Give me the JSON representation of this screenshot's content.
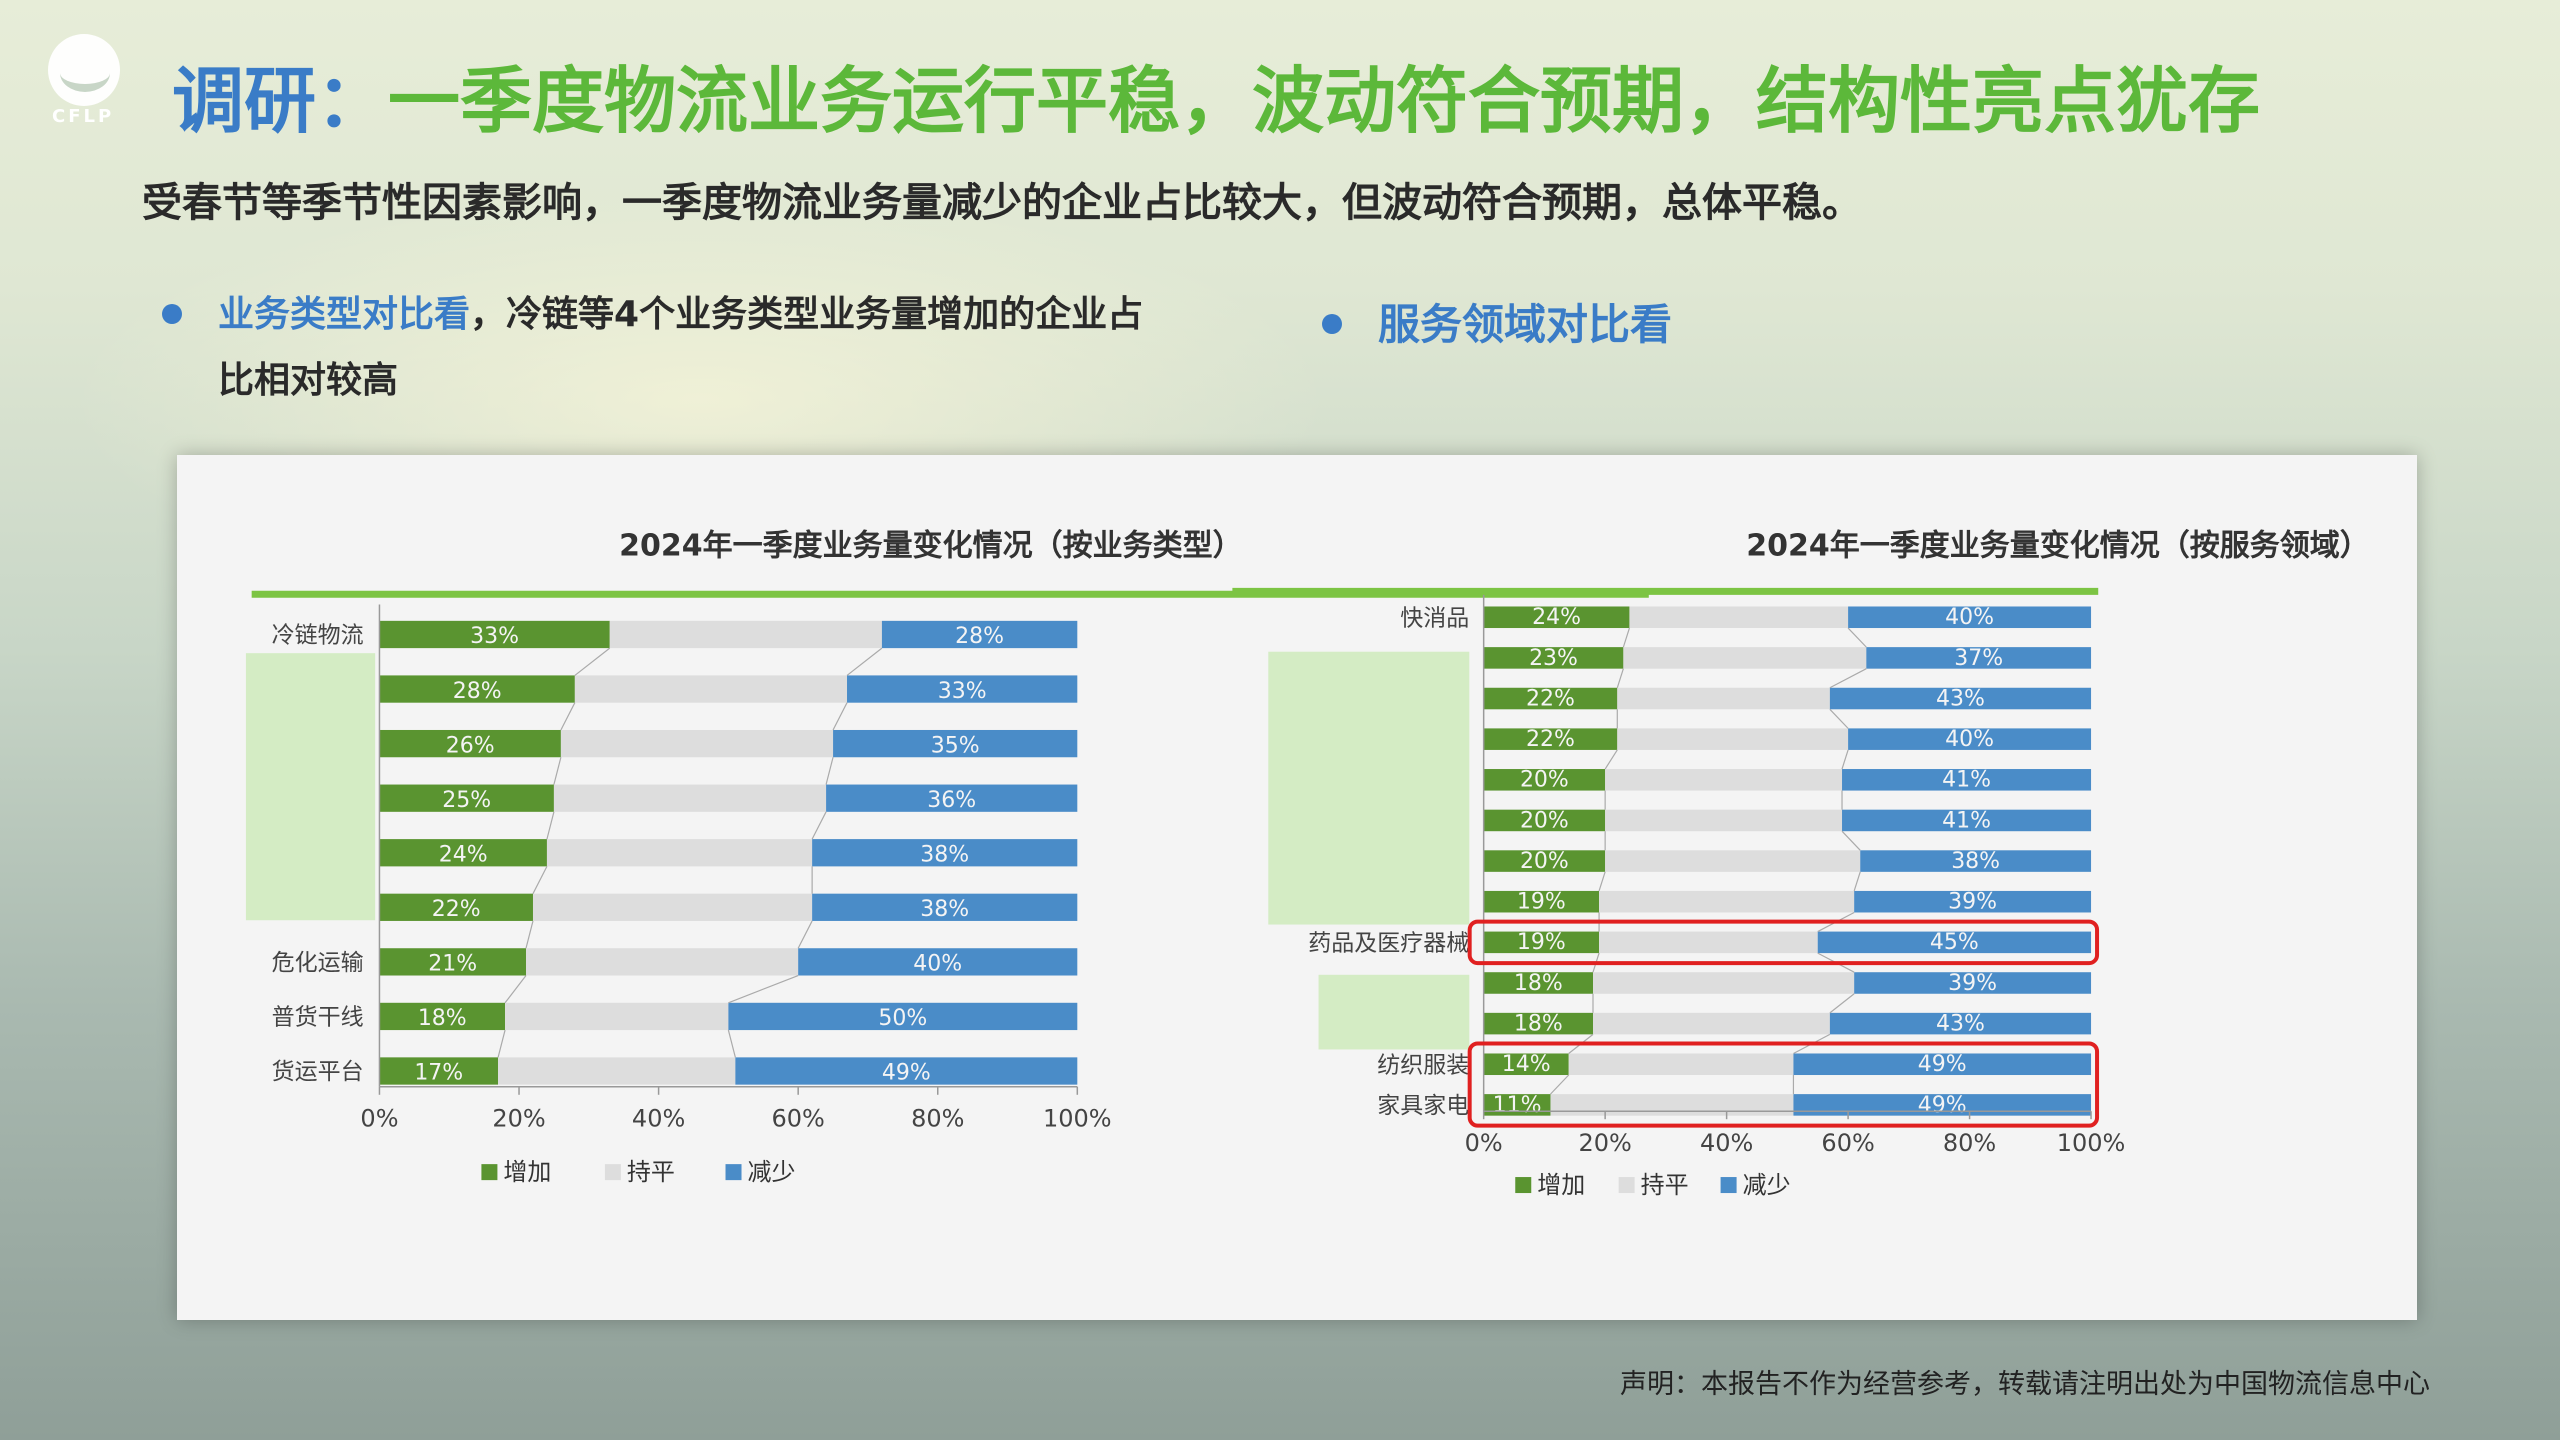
{
  "logo": {
    "text": "CFLP",
    "icon": "cflp-logo-icon"
  },
  "title": {
    "prefix": "调研：",
    "main": "一季度物流业务运行平稳，波动符合预期，结构性亮点犹存"
  },
  "subtitle": "受春节等季节性因素影响，一季度物流业务量减少的企业占比较大，但波动符合预期，总体平稳。",
  "bullets": {
    "left": {
      "highlight": "业务类型对比看",
      "rest_line1": "，冷链等4个业务类型业务量增加的企业占",
      "line2": "比相对较高"
    },
    "right": {
      "highlight": "服务领域对比看"
    }
  },
  "footer": "声明：本报告不作为经营参考，转载请注明出处为中国物流信息中心",
  "colors": {
    "increase": "#5a9430",
    "flat": "#dddddd",
    "decrease": "#4a8cc8",
    "title_green": "#7cc443",
    "highlight_red": "#e02020",
    "cover": "#d4ecc4"
  },
  "chart_data": [
    {
      "type": "bar",
      "stacked": "100%",
      "orientation": "horizontal",
      "title": "2024年一季度业务量变化情况（按业务类型）",
      "categories": [
        "冷链物流",
        "",
        "",
        "",
        "",
        "",
        "危化运输",
        "普货干线",
        "货运平台"
      ],
      "series": [
        {
          "name": "增加",
          "values": [
            33,
            28,
            26,
            25,
            24,
            22,
            21,
            18,
            17
          ]
        },
        {
          "name": "持平",
          "values": [
            39,
            39,
            39,
            39,
            38,
            40,
            39,
            32,
            34
          ]
        },
        {
          "name": "减少",
          "values": [
            28,
            33,
            35,
            36,
            38,
            38,
            40,
            50,
            49
          ]
        }
      ],
      "xticks": [
        "0%",
        "20%",
        "40%",
        "60%",
        "80%",
        "100%"
      ],
      "xlim": [
        0,
        100
      ],
      "legend": [
        "增加",
        "持平",
        "减少"
      ],
      "legend_position": "bottom"
    },
    {
      "type": "bar",
      "stacked": "100%",
      "orientation": "horizontal",
      "title": "2024年一季度业务量变化情况（按服务领域）",
      "categories": [
        "快消品",
        "",
        "",
        "",
        "",
        "",
        "",
        "",
        "药品及医疗器械",
        "",
        "",
        "纺织服装",
        "家具家电"
      ],
      "series": [
        {
          "name": "增加",
          "values": [
            24,
            23,
            22,
            22,
            20,
            20,
            20,
            19,
            19,
            18,
            18,
            14,
            11
          ]
        },
        {
          "name": "持平",
          "values": [
            36,
            40,
            35,
            38,
            39,
            39,
            42,
            42,
            36,
            43,
            39,
            37,
            40
          ]
        },
        {
          "name": "减少",
          "values": [
            40,
            37,
            43,
            40,
            41,
            41,
            38,
            39,
            45,
            39,
            43,
            49,
            49
          ]
        }
      ],
      "xticks": [
        "0%",
        "20%",
        "40%",
        "60%",
        "80%",
        "100%"
      ],
      "xlim": [
        0,
        100
      ],
      "legend": [
        "增加",
        "持平",
        "减少"
      ],
      "legend_position": "bottom",
      "highlighted_categories": [
        "药品及医疗器械",
        "纺织服装",
        "家具家电"
      ]
    }
  ]
}
